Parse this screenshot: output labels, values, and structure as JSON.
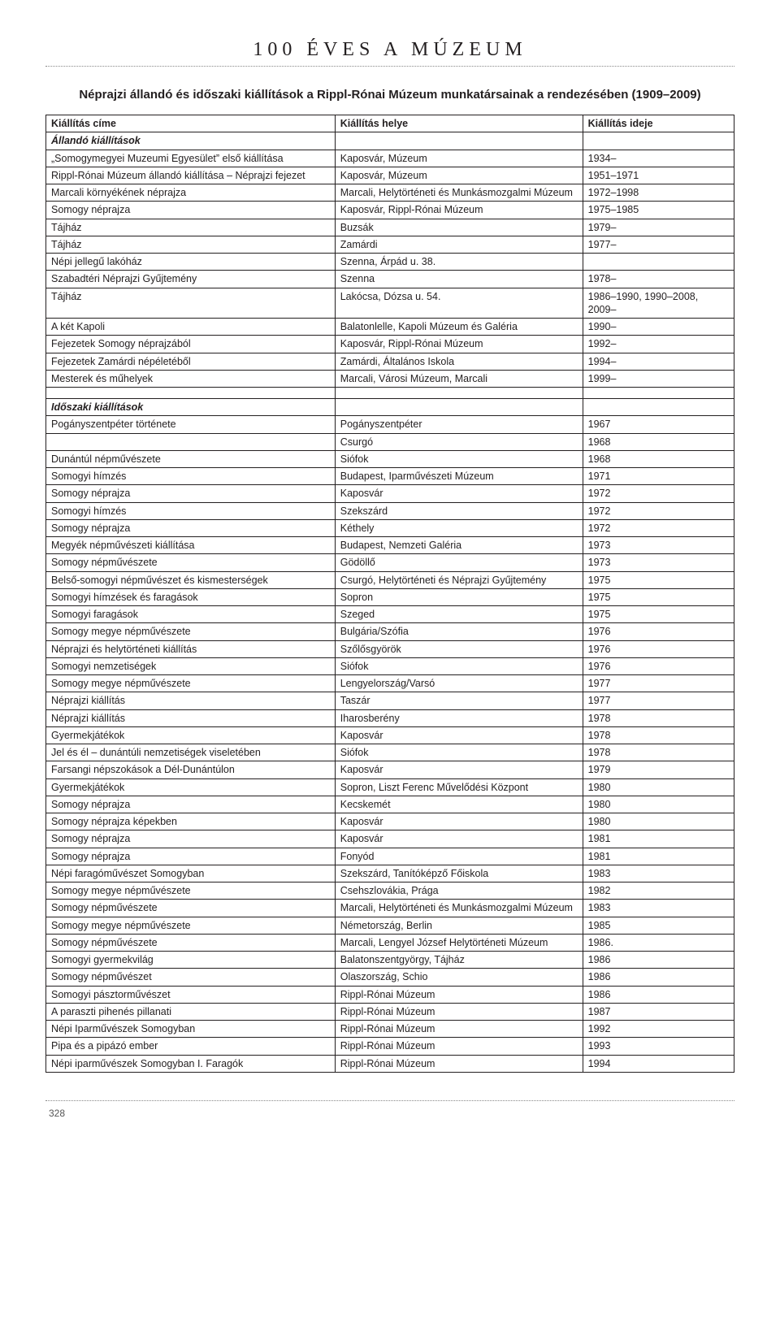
{
  "header": {
    "title": "100 ÉVES A MÚZEUM",
    "subtitle": "Néprajzi állandó és időszaki kiállítások a Rippl-Rónai Múzeum munkatársainak a rendezésében (1909–2009)"
  },
  "table": {
    "columns": [
      "Kiállítás címe",
      "Kiállítás helye",
      "Kiállítás ideje"
    ],
    "section1_label": "Állandó kiállítások",
    "section1_rows": [
      [
        "„Somogymegyei Muzeumi Egyesület” első kiállítása",
        "Kaposvár, Múzeum",
        "1934–"
      ],
      [
        "Rippl-Rónai Múzeum állandó kiállítása – Néprajzi fejezet",
        "Kaposvár, Múzeum",
        "1951–1971"
      ],
      [
        "Marcali környékének néprajza",
        "Marcali, Helytörténeti és Munkásmozgalmi Múzeum",
        "1972–1998"
      ],
      [
        "Somogy néprajza",
        "Kaposvár, Rippl-Rónai Múzeum",
        "1975–1985"
      ],
      [
        "Tájház",
        "Buzsák",
        "1979–"
      ],
      [
        "Tájház",
        "Zamárdi",
        "1977–"
      ],
      [
        "Népi jellegű lakóház",
        "Szenna, Árpád u. 38.",
        ""
      ],
      [
        "Szabadtéri Néprajzi Gyűjtemény",
        "Szenna",
        "1978–"
      ],
      [
        "Tájház",
        "Lakócsa, Dózsa u. 54.",
        "1986–1990, 1990–2008, 2009–"
      ],
      [
        "A két Kapoli",
        "Balatonlelle, Kapoli Múzeum és Galéria",
        "1990–"
      ],
      [
        "Fejezetek Somogy néprajzából",
        "Kaposvár, Rippl-Rónai Múzeum",
        "1992–"
      ],
      [
        "Fejezetek Zamárdi népéletéből",
        "Zamárdi, Általános Iskola",
        "1994–"
      ],
      [
        "Mesterek és műhelyek",
        "Marcali, Városi Múzeum, Marcali",
        "1999–"
      ]
    ],
    "section2_label": "Időszaki kiállítások",
    "section2_rows": [
      [
        "Pogányszentpéter története",
        "Pogányszentpéter",
        "1967"
      ],
      [
        "",
        "Csurgó",
        "1968"
      ],
      [
        "Dunántúl népművészete",
        "Siófok",
        "1968"
      ],
      [
        "Somogyi hímzés",
        "Budapest, Iparművészeti Múzeum",
        "1971"
      ],
      [
        "Somogy néprajza",
        "Kaposvár",
        "1972"
      ],
      [
        "Somogyi hímzés",
        "Szekszárd",
        "1972"
      ],
      [
        "Somogy néprajza",
        "Kéthely",
        "1972"
      ],
      [
        "Megyék népművészeti kiállítása",
        "Budapest, Nemzeti Galéria",
        "1973"
      ],
      [
        "Somogy népművészete",
        "Gödöllő",
        "1973"
      ],
      [
        "Belső-somogyi népművészet és kismesterségek",
        "Csurgó, Helytörténeti és Néprajzi Gyűjtemény",
        "1975"
      ],
      [
        "Somogyi hímzések és faragások",
        "Sopron",
        "1975"
      ],
      [
        "Somogyi faragások",
        "Szeged",
        "1975"
      ],
      [
        "Somogy megye népművészete",
        "Bulgária/Szófia",
        "1976"
      ],
      [
        "Néprajzi és helytörténeti kiállítás",
        "Szőlősgyörök",
        "1976"
      ],
      [
        "Somogyi nemzetiségek",
        "Siófok",
        "1976"
      ],
      [
        "Somogy megye népművészete",
        "Lengyelország/Varsó",
        "1977"
      ],
      [
        "Néprajzi kiállítás",
        "Taszár",
        "1977"
      ],
      [
        "Néprajzi kiállítás",
        "Iharosberény",
        "1978"
      ],
      [
        "Gyermekjátékok",
        "Kaposvár",
        "1978"
      ],
      [
        "Jel és él – dunántúli nemzetiségek viseletében",
        "Siófok",
        "1978"
      ],
      [
        "Farsangi népszokások a Dél-Dunántúlon",
        "Kaposvár",
        "1979"
      ],
      [
        "Gyermekjátékok",
        "Sopron, Liszt Ferenc Művelődési Központ",
        "1980"
      ],
      [
        "Somogy néprajza",
        "Kecskemét",
        "1980"
      ],
      [
        "Somogy néprajza képekben",
        "Kaposvár",
        "1980"
      ],
      [
        "Somogy néprajza",
        "Kaposvár",
        "1981"
      ],
      [
        "Somogy néprajza",
        "Fonyód",
        "1981"
      ],
      [
        "Népi faragóművészet Somogyban",
        "Szekszárd, Tanítóképző Főiskola",
        "1983"
      ],
      [
        "Somogy megye népművészete",
        "Csehszlovákia, Prága",
        "1982"
      ],
      [
        "Somogy népművészete",
        "Marcali, Helytörténeti és Munkásmozgalmi Múzeum",
        "1983"
      ],
      [
        "Somogy megye népművészete",
        "Németország, Berlin",
        "1985"
      ],
      [
        "Somogy népművészete",
        "Marcali, Lengyel József Helytörténeti Múzeum",
        "1986."
      ],
      [
        "Somogyi gyermekvilág",
        "Balatonszentgyörgy, Tájház",
        "1986"
      ],
      [
        "Somogy népművészet",
        "Olaszország, Schio",
        "1986"
      ],
      [
        "Somogyi pásztorművészet",
        "Rippl-Rónai Múzeum",
        "1986"
      ],
      [
        "A paraszti pihenés pillanati",
        "Rippl-Rónai Múzeum",
        "1987"
      ],
      [
        "Népi Iparművészek Somogyban",
        "Rippl-Rónai Múzeum",
        "1992"
      ],
      [
        "Pipa és a pipázó ember",
        "Rippl-Rónai Múzeum",
        "1993"
      ],
      [
        "Népi iparművészek Somogyban I. Faragók",
        "Rippl-Rónai Múzeum",
        "1994"
      ]
    ]
  },
  "page_number": "328",
  "style": {
    "border_color": "#231f20",
    "dotted_color": "#888888",
    "background": "#ffffff",
    "header_font": "serif",
    "body_font": "sans-serif",
    "header_fontsize": 24,
    "subtitle_fontsize": 15,
    "table_fontsize": 12.5
  }
}
